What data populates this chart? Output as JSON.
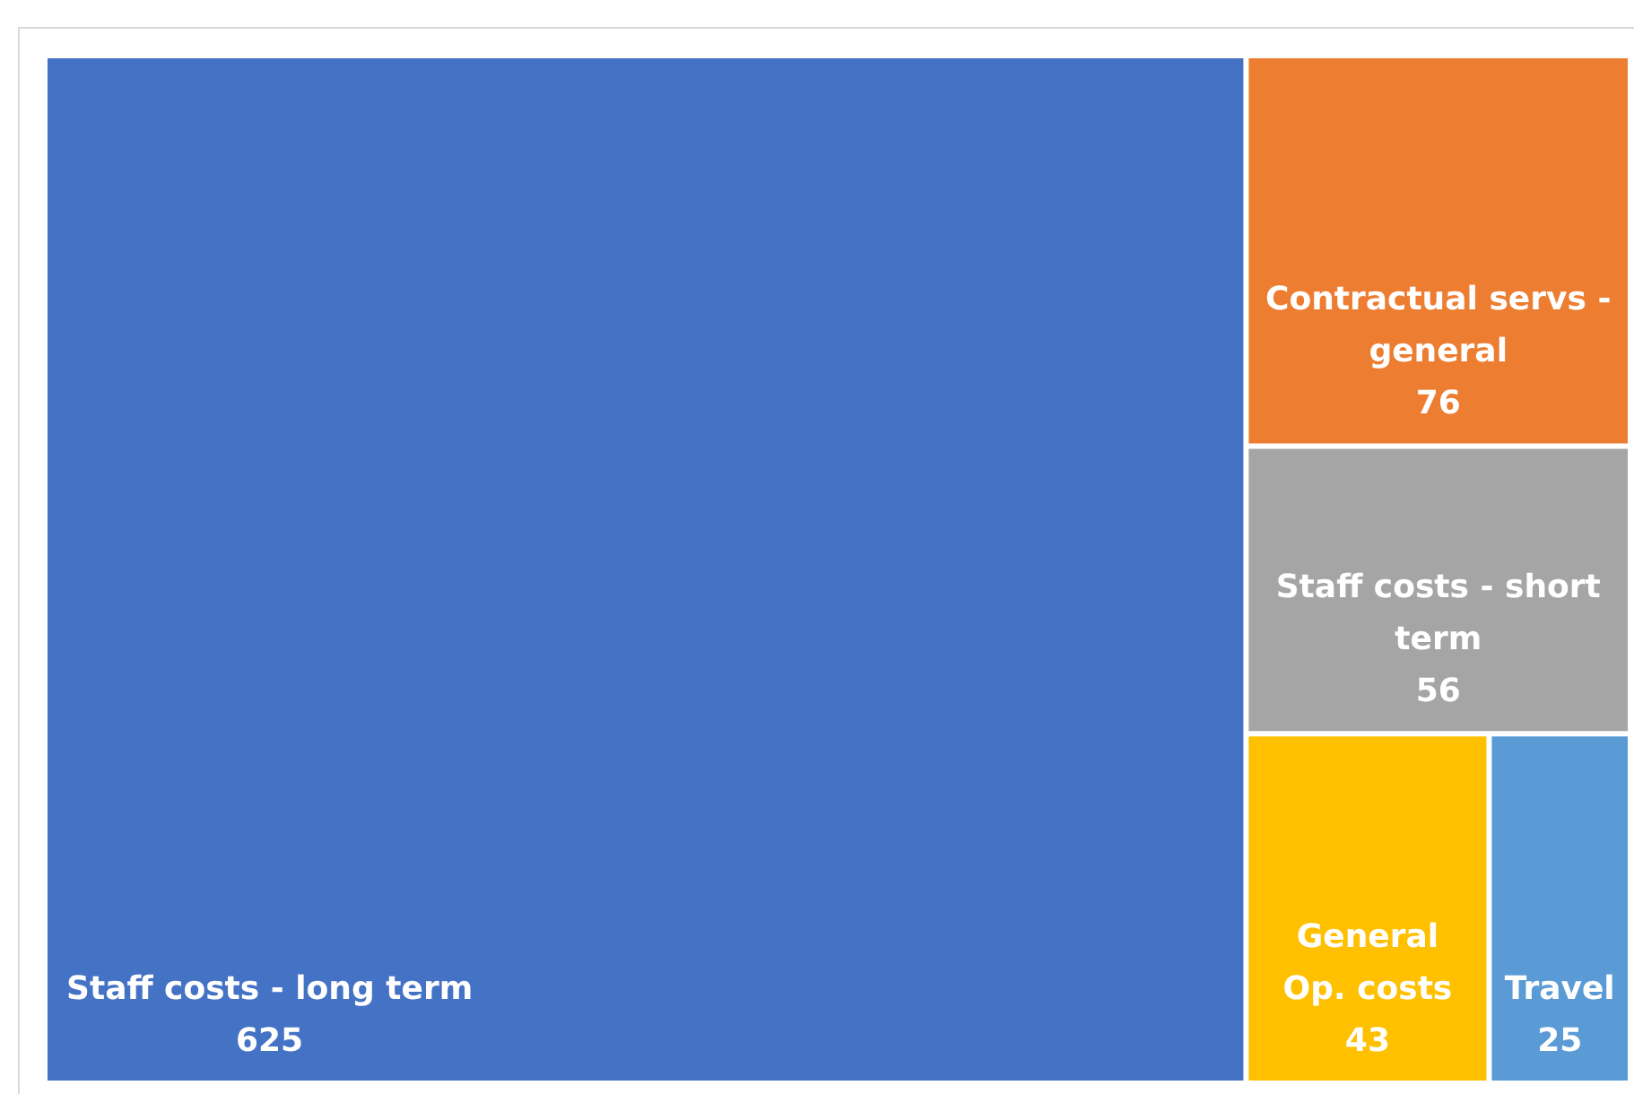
{
  "chart_data": {
    "type": "other",
    "categories": [
      "Staff costs - long term",
      "Contractual servs - general",
      "Staff costs - short term",
      "General Op. costs",
      "Travel"
    ],
    "values": [
      625,
      76,
      56,
      43,
      25
    ],
    "colors": [
      "#4472c4",
      "#ed7d31",
      "#a5a5a5",
      "#ffc000",
      "#5b9bd5"
    ],
    "data_labels": true
  }
}
